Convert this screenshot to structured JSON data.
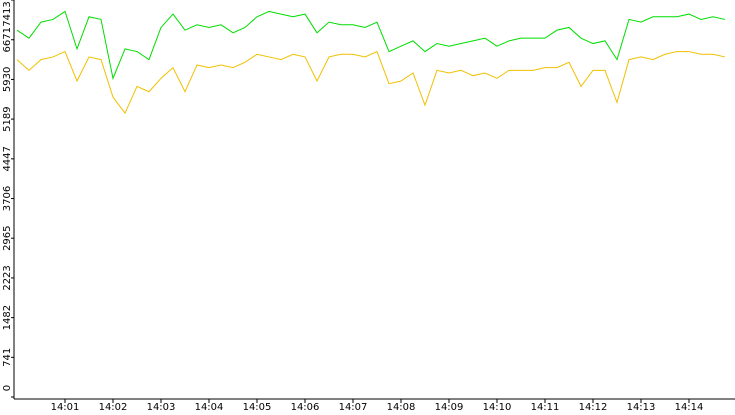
{
  "chart_data": {
    "type": "line",
    "categories": [
      null,
      null,
      null,
      null,
      "14:01",
      null,
      null,
      null,
      "14:02",
      null,
      null,
      null,
      "14:03",
      null,
      null,
      null,
      "14:04",
      null,
      null,
      null,
      "14:05",
      null,
      null,
      null,
      "14:06",
      null,
      null,
      null,
      "14:07",
      null,
      null,
      null,
      "14:08",
      null,
      null,
      null,
      "14:09",
      null,
      null,
      null,
      "14:10",
      null,
      null,
      null,
      "14:11",
      null,
      null,
      null,
      "14:12",
      null,
      null,
      null,
      "14:13",
      null,
      null,
      null,
      "14:14",
      null,
      null,
      null
    ],
    "series": [
      {
        "color": "#00dd00",
        "values": [
          6850,
          6700,
          7000,
          7050,
          7200,
          6500,
          7100,
          7050,
          5950,
          6500,
          6450,
          6300,
          6900,
          7150,
          6850,
          6950,
          6900,
          6950,
          6800,
          6900,
          7100,
          7200,
          7150,
          7100,
          7150,
          6800,
          7000,
          6950,
          6950,
          6900,
          7000,
          6450,
          6550,
          6650,
          6450,
          6600,
          6550,
          6600,
          6650,
          6700,
          6550,
          6650,
          6700,
          6700,
          6700,
          6850,
          6900,
          6700,
          6600,
          6650,
          6300,
          7050,
          7000,
          7100,
          7100,
          7100,
          7150,
          7050,
          7100,
          7050
        ]
      },
      {
        "color": "#f0c000",
        "values": [
          6300,
          6100,
          6300,
          6350,
          6450,
          5900,
          6350,
          6300,
          5600,
          5300,
          5800,
          5700,
          5950,
          6150,
          5700,
          6200,
          6150,
          6200,
          6150,
          6250,
          6400,
          6350,
          6300,
          6400,
          6350,
          5900,
          6350,
          6400,
          6400,
          6350,
          6450,
          5850,
          5900,
          6050,
          5450,
          6100,
          6050,
          6100,
          6000,
          6050,
          5950,
          6100,
          6100,
          6100,
          6150,
          6150,
          6250,
          5800,
          6100,
          6100,
          5500,
          6300,
          6350,
          6300,
          6400,
          6450,
          6450,
          6400,
          6400,
          6350
        ]
      }
    ],
    "ylim": [
      0,
      7413
    ],
    "yticks": [
      0,
      741,
      1482,
      2223,
      2965,
      3706,
      4447,
      5189,
      5930,
      6671,
      7413
    ]
  }
}
